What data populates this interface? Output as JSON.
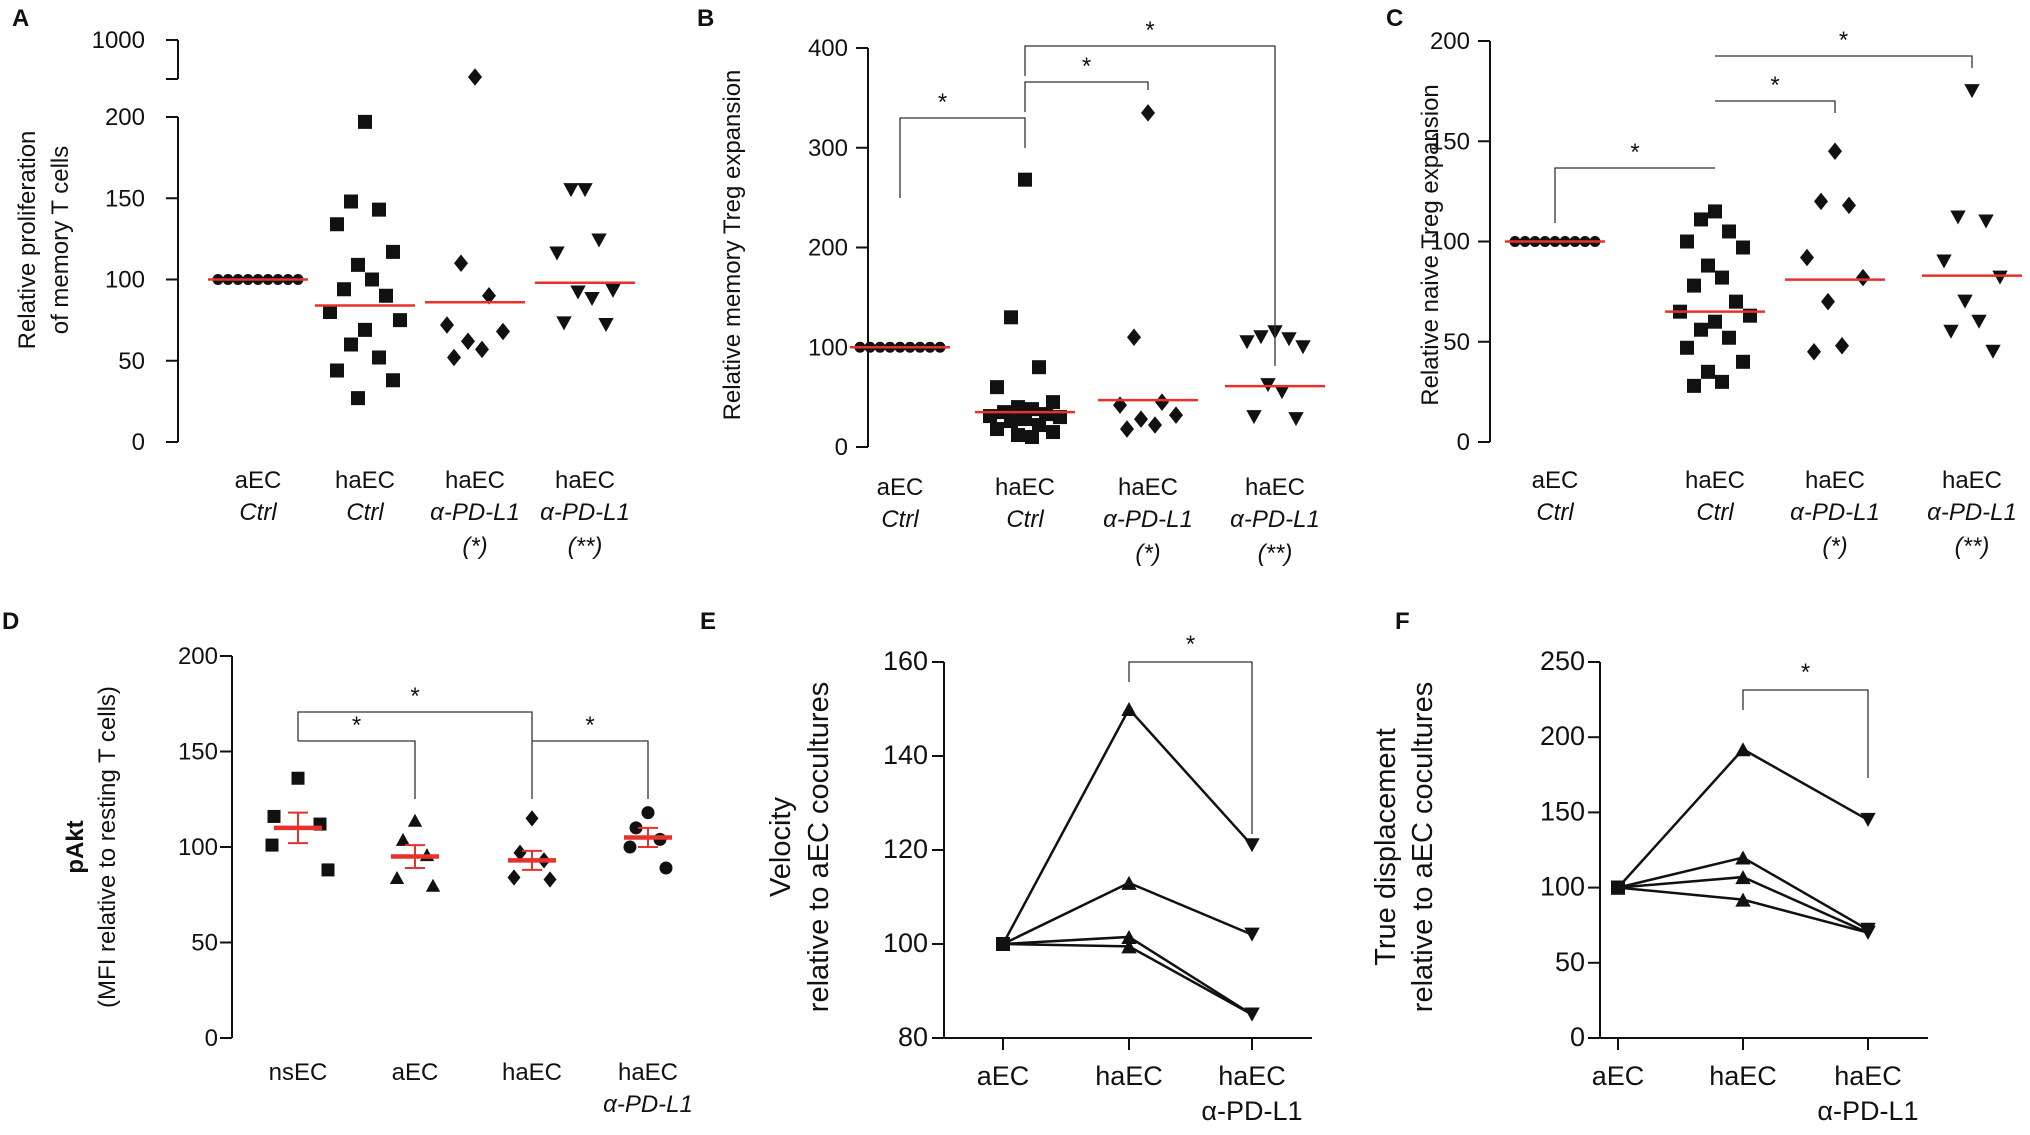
{
  "figure": {
    "panels": [
      {
        "id": "A",
        "label": "A",
        "ylabel": [
          "Relative proliferation",
          "of memory T cells"
        ],
        "yticks": [
          0,
          50,
          100,
          150,
          200
        ],
        "break_tick": 1000,
        "categories": [
          [
            "aEC",
            "Ctrl",
            ""
          ],
          [
            "haEC",
            "Ctrl",
            ""
          ],
          [
            "haEC",
            "α-PD-L1",
            "(*)"
          ],
          [
            "haEC",
            "α-PD-L1",
            "(**)"
          ]
        ],
        "markers": [
          "circle",
          "square",
          "diamond",
          "triangle-down"
        ],
        "groups": [
          [
            100,
            100,
            100,
            100,
            100,
            100,
            100,
            100,
            100
          ],
          [
            197,
            148,
            143,
            134,
            117,
            109,
            100,
            94,
            90,
            80,
            75,
            69,
            60,
            52,
            44,
            38,
            27
          ],
          [
            240,
            110,
            90,
            72,
            68,
            62,
            57,
            52
          ],
          [
            155,
            155,
            124,
            116,
            93,
            92,
            88,
            73,
            72
          ]
        ],
        "medians": [
          100,
          84,
          86,
          98
        ],
        "brackets": []
      },
      {
        "id": "B",
        "label": "B",
        "ylabel": [
          "Relative memory Treg expansion"
        ],
        "yticks": [
          0,
          100,
          200,
          300,
          400
        ],
        "categories": [
          [
            "aEC",
            "Ctrl",
            ""
          ],
          [
            "haEC",
            "Ctrl",
            ""
          ],
          [
            "haEC",
            "α-PD-L1",
            "(*)"
          ],
          [
            "haEC",
            "α-PD-L1",
            "(**)"
          ]
        ],
        "markers": [
          "circle",
          "square",
          "diamond",
          "triangle-down"
        ],
        "groups": [
          [
            100,
            100,
            100,
            100,
            100,
            100,
            100,
            100,
            100
          ],
          [
            268,
            130,
            80,
            60,
            45,
            40,
            38,
            35,
            33,
            31,
            30,
            28,
            26,
            22,
            18,
            15,
            12,
            10
          ],
          [
            335,
            110,
            45,
            42,
            32,
            28,
            22,
            18
          ],
          [
            115,
            110,
            108,
            105,
            100,
            62,
            55,
            30,
            28
          ]
        ],
        "medians": [
          100,
          35,
          47,
          61
        ],
        "brackets": [
          {
            "from": 0,
            "to": 1,
            "label": "*"
          },
          {
            "from": 1,
            "to": 2,
            "label": "*"
          },
          {
            "from": 1,
            "to": 3,
            "label": "*"
          }
        ]
      },
      {
        "id": "C",
        "label": "C",
        "ylabel": [
          "Relative naive Treg expansion"
        ],
        "yticks": [
          0,
          50,
          100,
          150,
          200
        ],
        "categories": [
          [
            "aEC",
            "Ctrl",
            ""
          ],
          [
            "haEC",
            "Ctrl",
            ""
          ],
          [
            "haEC",
            "α-PD-L1",
            "(*)"
          ],
          [
            "haEC",
            "α-PD-L1",
            "(**)"
          ]
        ],
        "markers": [
          "circle",
          "square",
          "diamond",
          "triangle-down"
        ],
        "groups": [
          [
            100,
            100,
            100,
            100,
            100,
            100,
            100,
            100,
            100
          ],
          [
            115,
            111,
            105,
            100,
            97,
            88,
            82,
            78,
            70,
            65,
            63,
            60,
            56,
            52,
            47,
            40,
            35,
            30,
            28
          ],
          [
            145,
            120,
            118,
            92,
            82,
            70,
            48,
            45
          ],
          [
            175,
            112,
            110,
            90,
            82,
            70,
            60,
            55,
            45
          ]
        ],
        "medians": [
          100,
          65,
          81,
          83
        ],
        "brackets": [
          {
            "from": 0,
            "to": 1,
            "label": "*"
          },
          {
            "from": 1,
            "to": 2,
            "label": "*"
          },
          {
            "from": 1,
            "to": 3,
            "label": "*"
          }
        ]
      },
      {
        "id": "D",
        "label": "D",
        "ylabel_bold": "pAkt",
        "ylabel": [
          "(MFI relative to resting T cells)"
        ],
        "yticks": [
          0,
          50,
          100,
          150,
          200
        ],
        "categories": [
          [
            "nsEC",
            ""
          ],
          [
            "aEC",
            ""
          ],
          [
            "haEC",
            ""
          ],
          [
            "haEC",
            "α-PD-L1"
          ]
        ],
        "markers": [
          "square",
          "triangle-up",
          "diamond",
          "circle"
        ],
        "groups": [
          [
            136,
            116,
            112,
            101,
            88
          ],
          [
            114,
            104,
            96,
            84,
            80
          ],
          [
            115,
            97,
            93,
            84,
            83
          ],
          [
            118,
            110,
            104,
            100,
            89
          ]
        ],
        "means": [
          110,
          95,
          93,
          105
        ],
        "sems": [
          8,
          6,
          5,
          5
        ],
        "brackets": [
          {
            "from": 0,
            "to": 1,
            "label": "*"
          },
          {
            "from": 0,
            "to": 2,
            "label": "*"
          },
          {
            "from": 2,
            "to": 3,
            "label": "*"
          }
        ]
      },
      {
        "id": "E",
        "label": "E",
        "ylabel": [
          "Velocity",
          "relative to aEC cocultures"
        ],
        "yticks": [
          80,
          100,
          120,
          140,
          160
        ],
        "categories": [
          [
            "aEC",
            ""
          ],
          [
            "haEC",
            ""
          ],
          [
            "haEC",
            "α-PD-L1"
          ]
        ],
        "lines": [
          [
            100,
            150,
            121
          ],
          [
            100,
            113,
            102
          ],
          [
            100,
            101.5,
            85
          ],
          [
            100,
            99.5,
            85
          ]
        ],
        "markers_by_point": [
          "square",
          "triangle-up",
          "triangle-down"
        ],
        "brackets": [
          {
            "from": 1,
            "to": 2,
            "label": "*"
          }
        ]
      },
      {
        "id": "F",
        "label": "F",
        "ylabel": [
          "True displacement",
          "relative to aEC cocultures"
        ],
        "yticks": [
          0,
          50,
          100,
          150,
          200,
          250
        ],
        "categories": [
          [
            "aEC",
            ""
          ],
          [
            "haEC",
            ""
          ],
          [
            "haEC",
            "α-PD-L1"
          ]
        ],
        "lines": [
          [
            100,
            192,
            145
          ],
          [
            100,
            120,
            72
          ],
          [
            100,
            107,
            70
          ],
          [
            100,
            92,
            70
          ]
        ],
        "markers_by_point": [
          "square",
          "triangle-up",
          "triangle-down"
        ],
        "brackets": [
          {
            "from": 1,
            "to": 2,
            "label": "*"
          }
        ]
      }
    ]
  },
  "chart_data": [
    {
      "type": "scatter",
      "panel": "A",
      "ylabel": "Relative proliferation of memory T cells",
      "categories": [
        "aEC Ctrl",
        "haEC Ctrl",
        "haEC α-PD-L1 (*)",
        "haEC α-PD-L1 (**)"
      ],
      "series": [
        {
          "name": "aEC Ctrl",
          "values": [
            100,
            100,
            100,
            100,
            100,
            100,
            100,
            100,
            100
          ]
        },
        {
          "name": "haEC Ctrl",
          "values": [
            197,
            148,
            143,
            134,
            117,
            109,
            100,
            94,
            90,
            80,
            75,
            69,
            60,
            52,
            44,
            38,
            27
          ]
        },
        {
          "name": "haEC α-PD-L1 (*)",
          "values": [
            240,
            110,
            90,
            72,
            68,
            62,
            57,
            52
          ]
        },
        {
          "name": "haEC α-PD-L1 (**)",
          "values": [
            155,
            155,
            124,
            116,
            93,
            92,
            88,
            73,
            72
          ]
        }
      ],
      "medians": [
        100,
        84,
        86,
        98
      ],
      "ylim": [
        0,
        1000
      ]
    },
    {
      "type": "scatter",
      "panel": "B",
      "ylabel": "Relative memory Treg expansion",
      "categories": [
        "aEC Ctrl",
        "haEC Ctrl",
        "haEC α-PD-L1 (*)",
        "haEC α-PD-L1 (**)"
      ],
      "medians": [
        100,
        35,
        47,
        61
      ],
      "ylim": [
        0,
        400
      ]
    },
    {
      "type": "scatter",
      "panel": "C",
      "ylabel": "Relative naive Treg expansion",
      "categories": [
        "aEC Ctrl",
        "haEC Ctrl",
        "haEC α-PD-L1 (*)",
        "haEC α-PD-L1 (**)"
      ],
      "medians": [
        100,
        65,
        81,
        83
      ],
      "ylim": [
        0,
        200
      ]
    },
    {
      "type": "scatter",
      "panel": "D",
      "ylabel": "pAkt (MFI relative to resting T cells)",
      "categories": [
        "nsEC",
        "aEC",
        "haEC",
        "haEC α-PD-L1"
      ],
      "means": [
        110,
        95,
        93,
        105
      ],
      "ylim": [
        0,
        200
      ]
    },
    {
      "type": "line",
      "panel": "E",
      "ylabel": "Velocity relative to aEC cocultures",
      "categories": [
        "aEC",
        "haEC",
        "haEC α-PD-L1"
      ],
      "series": [
        {
          "name": "1",
          "values": [
            100,
            150,
            121
          ]
        },
        {
          "name": "2",
          "values": [
            100,
            113,
            102
          ]
        },
        {
          "name": "3",
          "values": [
            100,
            101.5,
            85
          ]
        },
        {
          "name": "4",
          "values": [
            100,
            99.5,
            85
          ]
        }
      ],
      "ylim": [
        80,
        160
      ]
    },
    {
      "type": "line",
      "panel": "F",
      "ylabel": "True displacement relative to aEC cocultures",
      "categories": [
        "aEC",
        "haEC",
        "haEC α-PD-L1"
      ],
      "series": [
        {
          "name": "1",
          "values": [
            100,
            192,
            145
          ]
        },
        {
          "name": "2",
          "values": [
            100,
            120,
            72
          ]
        },
        {
          "name": "3",
          "values": [
            100,
            107,
            70
          ]
        },
        {
          "name": "4",
          "values": [
            100,
            92,
            70
          ]
        }
      ],
      "ylim": [
        0,
        250
      ]
    }
  ]
}
